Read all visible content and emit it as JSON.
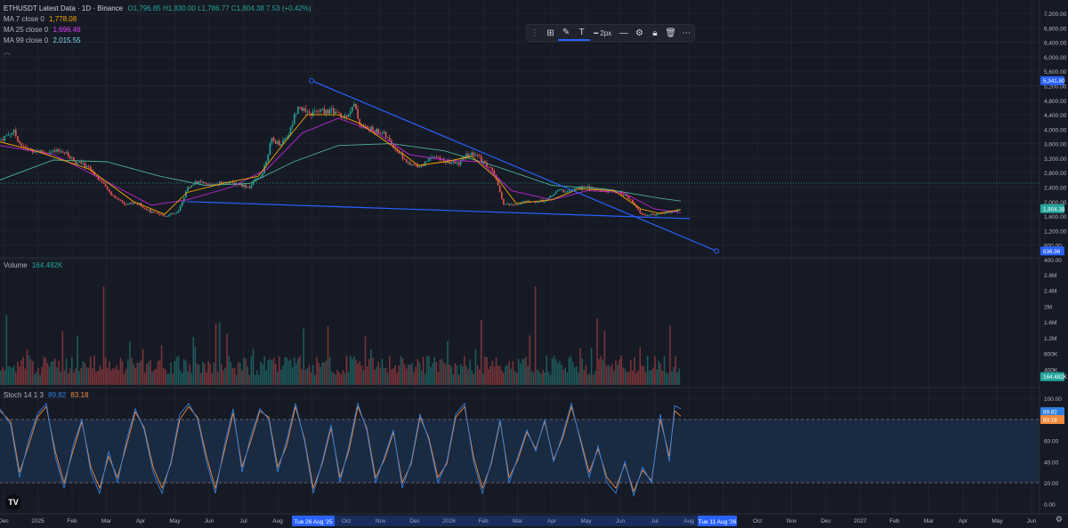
{
  "legend": {
    "symbol": "ETHUSDT Latest Data · 1D · Binance",
    "ohlc": "O1,796.85 H1,830.00 L1,786.77 C1,804.38 7.53 (+0.42%)",
    "ma7_label": "MA 7 close 0",
    "ma7_value": "1,778.08",
    "ma25_label": "MA 25 close 0",
    "ma25_value": "1,696.46",
    "ma99_label": "MA 99 close 0",
    "ma99_value": "2,015.55",
    "volume_label": "Volume",
    "volume_value": "164.482K",
    "stoch_label": "Stoch 14 1 3",
    "stoch_k": "89.82",
    "stoch_d": "83.18"
  },
  "toolbar": {
    "width_label": "2px"
  },
  "colors": {
    "up": "#26a69a",
    "down": "#ef5350",
    "ma7": "#f7a600",
    "ma25": "#c026d3",
    "ma99": "#4caf8f",
    "trend": "#2962ff",
    "stoch_k": "#2f7fe0",
    "stoch_d": "#f08a3c"
  },
  "chart_data": {
    "type": "candlestick",
    "price_axis": {
      "ticks": [
        "7,200.00",
        "6,800.00",
        "6,400.00",
        "6,000.00",
        "5,600.00",
        "5,200.00",
        "4,800.00",
        "4,400.00",
        "4,000.00",
        "3,600.00",
        "3,200.00",
        "2,800.00",
        "2,400.00",
        "2,000.00",
        "1,600.00",
        "1,200.00",
        "800.00",
        "400.00"
      ],
      "range": [
        400,
        7400
      ],
      "labels": {
        "upper_marker": "5,341.80",
        "current": "1,804.38",
        "lower_marker": "636.98"
      }
    },
    "volume_axis": {
      "ticks": [
        "2.8M",
        "2.4M",
        "2M",
        "1.6M",
        "1.2M",
        "800K",
        "400K"
      ],
      "current": "164.482K",
      "range": [
        0,
        3000000
      ]
    },
    "stoch_axis": {
      "ticks": [
        "100.00",
        "80.00",
        "60.00",
        "40.00",
        "20.00",
        "0.00"
      ],
      "bands": [
        20,
        80
      ],
      "current_k": "89.82",
      "current_d": "83.18"
    },
    "x_axis": {
      "ticks": [
        "Dec",
        "2025",
        "Feb",
        "Mar",
        "Apr",
        "May",
        "Jun",
        "Jul",
        "Aug",
        "Sep",
        "Oct",
        "Nov",
        "Dec",
        "2026",
        "Feb",
        "Mar",
        "Apr",
        "May",
        "Jun",
        "Jul",
        "Aug",
        "Sep",
        "Oct",
        "Nov",
        "Dec",
        "2027",
        "Feb",
        "Mar",
        "Apr",
        "May",
        "Jun"
      ],
      "crosshair_label": "Tue 26 Aug '25",
      "cursor_label": "Tue 11 Aug '26"
    },
    "price_path": [
      [
        0,
        3700
      ],
      [
        15,
        3950
      ],
      [
        25,
        3500
      ],
      [
        40,
        3400
      ],
      [
        55,
        3350
      ],
      [
        70,
        3400
      ],
      [
        85,
        3100
      ],
      [
        100,
        2950
      ],
      [
        110,
        2650
      ],
      [
        125,
        2200
      ],
      [
        140,
        1950
      ],
      [
        155,
        1950
      ],
      [
        170,
        1700
      ],
      [
        185,
        1600
      ],
      [
        200,
        1700
      ],
      [
        210,
        2350
      ],
      [
        220,
        2550
      ],
      [
        235,
        2450
      ],
      [
        250,
        2550
      ],
      [
        265,
        2500
      ],
      [
        280,
        2400
      ],
      [
        295,
        2800
      ],
      [
        305,
        3700
      ],
      [
        315,
        3600
      ],
      [
        325,
        3900
      ],
      [
        335,
        4700
      ],
      [
        345,
        4400
      ],
      [
        360,
        4500
      ],
      [
        375,
        4500
      ],
      [
        385,
        4300
      ],
      [
        398,
        4650
      ],
      [
        405,
        4100
      ],
      [
        415,
        4000
      ],
      [
        430,
        3900
      ],
      [
        440,
        3600
      ],
      [
        450,
        3300
      ],
      [
        460,
        3000
      ],
      [
        475,
        3000
      ],
      [
        485,
        3300
      ],
      [
        500,
        3100
      ],
      [
        515,
        3050
      ],
      [
        525,
        3300
      ],
      [
        535,
        3300
      ],
      [
        545,
        3050
      ],
      [
        555,
        2800
      ],
      [
        565,
        1950
      ],
      [
        575,
        1900
      ],
      [
        590,
        2000
      ],
      [
        605,
        2000
      ],
      [
        615,
        2050
      ],
      [
        625,
        2300
      ],
      [
        640,
        2300
      ],
      [
        655,
        2400
      ],
      [
        670,
        2350
      ],
      [
        685,
        2300
      ],
      [
        700,
        2200
      ],
      [
        710,
        2000
      ],
      [
        720,
        1650
      ],
      [
        730,
        1620
      ],
      [
        745,
        1700
      ],
      [
        755,
        1720
      ],
      [
        765,
        1804
      ]
    ],
    "ma7_path": [
      [
        0,
        3650
      ],
      [
        40,
        3400
      ],
      [
        100,
        2900
      ],
      [
        150,
        2000
      ],
      [
        185,
        1650
      ],
      [
        210,
        2250
      ],
      [
        250,
        2500
      ],
      [
        290,
        2700
      ],
      [
        325,
        3800
      ],
      [
        345,
        4400
      ],
      [
        380,
        4400
      ],
      [
        405,
        4150
      ],
      [
        440,
        3550
      ],
      [
        470,
        3000
      ],
      [
        500,
        3100
      ],
      [
        530,
        3250
      ],
      [
        560,
        2600
      ],
      [
        580,
        1950
      ],
      [
        620,
        2050
      ],
      [
        650,
        2350
      ],
      [
        690,
        2300
      ],
      [
        720,
        1800
      ],
      [
        740,
        1680
      ],
      [
        765,
        1778
      ]
    ],
    "ma25_path": [
      [
        0,
        3550
      ],
      [
        60,
        3300
      ],
      [
        120,
        2550
      ],
      [
        170,
        1900
      ],
      [
        210,
        2050
      ],
      [
        260,
        2400
      ],
      [
        300,
        2900
      ],
      [
        340,
        3900
      ],
      [
        380,
        4300
      ],
      [
        420,
        3950
      ],
      [
        460,
        3300
      ],
      [
        500,
        3150
      ],
      [
        540,
        3100
      ],
      [
        575,
        2300
      ],
      [
        620,
        2050
      ],
      [
        660,
        2300
      ],
      [
        700,
        2250
      ],
      [
        735,
        1800
      ],
      [
        765,
        1696
      ]
    ],
    "ma99_path": [
      [
        0,
        2600
      ],
      [
        60,
        3150
      ],
      [
        120,
        3100
      ],
      [
        180,
        2700
      ],
      [
        230,
        2450
      ],
      [
        280,
        2500
      ],
      [
        330,
        3100
      ],
      [
        380,
        3550
      ],
      [
        440,
        3600
      ],
      [
        500,
        3400
      ],
      [
        560,
        2950
      ],
      [
        620,
        2450
      ],
      [
        680,
        2350
      ],
      [
        740,
        2100
      ],
      [
        765,
        2015
      ]
    ],
    "trendlines": [
      {
        "from": [
          350,
          5341.8
        ],
        "to": [
          805,
          636.98
        ]
      },
      {
        "from": [
          210,
          2000
        ],
        "to": [
          775,
          1530
        ]
      }
    ],
    "stoch_k_path": [
      [
        0,
        90
      ],
      [
        12,
        75
      ],
      [
        22,
        25
      ],
      [
        32,
        60
      ],
      [
        42,
        85
      ],
      [
        52,
        95
      ],
      [
        62,
        45
      ],
      [
        72,
        15
      ],
      [
        82,
        55
      ],
      [
        92,
        80
      ],
      [
        102,
        30
      ],
      [
        112,
        10
      ],
      [
        122,
        50
      ],
      [
        132,
        20
      ],
      [
        142,
        60
      ],
      [
        152,
        90
      ],
      [
        162,
        70
      ],
      [
        172,
        30
      ],
      [
        182,
        10
      ],
      [
        192,
        40
      ],
      [
        202,
        85
      ],
      [
        212,
        95
      ],
      [
        222,
        80
      ],
      [
        232,
        40
      ],
      [
        242,
        10
      ],
      [
        252,
        55
      ],
      [
        262,
        90
      ],
      [
        272,
        30
      ],
      [
        282,
        65
      ],
      [
        292,
        90
      ],
      [
        302,
        80
      ],
      [
        312,
        30
      ],
      [
        322,
        60
      ],
      [
        332,
        95
      ],
      [
        342,
        60
      ],
      [
        352,
        10
      ],
      [
        362,
        40
      ],
      [
        372,
        75
      ],
      [
        382,
        20
      ],
      [
        392,
        55
      ],
      [
        402,
        95
      ],
      [
        412,
        70
      ],
      [
        422,
        20
      ],
      [
        432,
        45
      ],
      [
        442,
        70
      ],
      [
        452,
        15
      ],
      [
        462,
        40
      ],
      [
        472,
        85
      ],
      [
        482,
        60
      ],
      [
        492,
        20
      ],
      [
        502,
        40
      ],
      [
        512,
        85
      ],
      [
        522,
        95
      ],
      [
        532,
        40
      ],
      [
        542,
        10
      ],
      [
        552,
        40
      ],
      [
        562,
        80
      ],
      [
        572,
        20
      ],
      [
        582,
        45
      ],
      [
        592,
        70
      ],
      [
        602,
        50
      ],
      [
        612,
        80
      ],
      [
        622,
        40
      ],
      [
        632,
        65
      ],
      [
        642,
        95
      ],
      [
        652,
        60
      ],
      [
        662,
        25
      ],
      [
        672,
        55
      ],
      [
        682,
        20
      ],
      [
        692,
        10
      ],
      [
        702,
        40
      ],
      [
        712,
        8
      ],
      [
        722,
        35
      ],
      [
        732,
        20
      ],
      [
        742,
        85
      ],
      [
        752,
        40
      ],
      [
        758,
        93
      ],
      [
        765,
        90
      ]
    ],
    "stoch_d_path": [
      [
        0,
        88
      ],
      [
        12,
        78
      ],
      [
        22,
        30
      ],
      [
        32,
        55
      ],
      [
        42,
        82
      ],
      [
        52,
        92
      ],
      [
        62,
        50
      ],
      [
        72,
        20
      ],
      [
        82,
        50
      ],
      [
        92,
        78
      ],
      [
        102,
        35
      ],
      [
        112,
        15
      ],
      [
        122,
        45
      ],
      [
        132,
        25
      ],
      [
        142,
        55
      ],
      [
        152,
        87
      ],
      [
        162,
        72
      ],
      [
        172,
        35
      ],
      [
        182,
        15
      ],
      [
        192,
        38
      ],
      [
        202,
        80
      ],
      [
        212,
        92
      ],
      [
        222,
        82
      ],
      [
        232,
        45
      ],
      [
        242,
        15
      ],
      [
        252,
        50
      ],
      [
        262,
        86
      ],
      [
        272,
        35
      ],
      [
        282,
        60
      ],
      [
        292,
        88
      ],
      [
        302,
        82
      ],
      [
        312,
        35
      ],
      [
        322,
        55
      ],
      [
        332,
        92
      ],
      [
        342,
        62
      ],
      [
        352,
        15
      ],
      [
        362,
        38
      ],
      [
        372,
        72
      ],
      [
        382,
        25
      ],
      [
        392,
        50
      ],
      [
        402,
        92
      ],
      [
        412,
        72
      ],
      [
        422,
        25
      ],
      [
        432,
        42
      ],
      [
        442,
        68
      ],
      [
        452,
        20
      ],
      [
        462,
        38
      ],
      [
        472,
        82
      ],
      [
        482,
        62
      ],
      [
        492,
        25
      ],
      [
        502,
        38
      ],
      [
        512,
        82
      ],
      [
        522,
        92
      ],
      [
        532,
        45
      ],
      [
        542,
        15
      ],
      [
        552,
        38
      ],
      [
        562,
        78
      ],
      [
        572,
        25
      ],
      [
        582,
        42
      ],
      [
        592,
        68
      ],
      [
        602,
        52
      ],
      [
        612,
        78
      ],
      [
        622,
        42
      ],
      [
        632,
        62
      ],
      [
        642,
        92
      ],
      [
        652,
        62
      ],
      [
        662,
        30
      ],
      [
        672,
        52
      ],
      [
        682,
        25
      ],
      [
        692,
        15
      ],
      [
        702,
        38
      ],
      [
        712,
        12
      ],
      [
        722,
        32
      ],
      [
        732,
        22
      ],
      [
        742,
        80
      ],
      [
        752,
        45
      ],
      [
        758,
        88
      ],
      [
        765,
        83
      ]
    ]
  }
}
